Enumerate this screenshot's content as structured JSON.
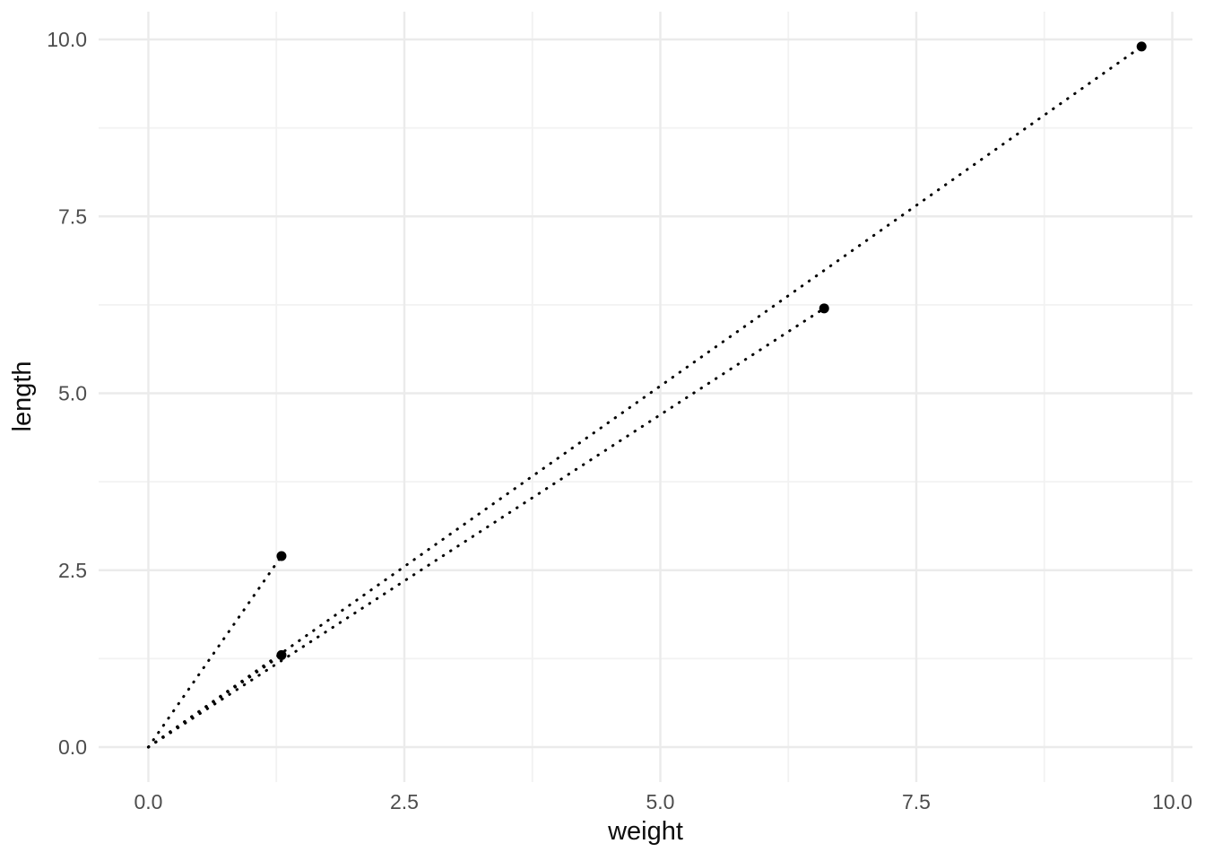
{
  "chart_data": {
    "type": "scatter",
    "title": "",
    "xlabel": "weight",
    "ylabel": "length",
    "xlim": [
      -0.49,
      10.19
    ],
    "ylim": [
      -0.49,
      10.39
    ],
    "x_major_ticks": [
      0.0,
      2.5,
      5.0,
      7.5,
      10.0
    ],
    "x_tick_labels": [
      "0.0",
      "2.5",
      "5.0",
      "7.5",
      "10.0"
    ],
    "y_major_ticks": [
      0.0,
      2.5,
      5.0,
      7.5,
      10.0
    ],
    "y_tick_labels": [
      "0.0",
      "2.5",
      "5.0",
      "7.5",
      "10.0"
    ],
    "x_minor_ticks": [
      1.25,
      3.75,
      6.25,
      8.75
    ],
    "y_minor_ticks": [
      1.25,
      3.75,
      6.25,
      8.75
    ],
    "grid": "major-and-minor",
    "legend": false,
    "series": [
      {
        "name": "points",
        "marker": "filled-circle",
        "points": [
          {
            "weight": 1.3,
            "length": 2.7
          },
          {
            "weight": 1.3,
            "length": 1.3
          },
          {
            "weight": 6.6,
            "length": 6.2
          },
          {
            "weight": 9.7,
            "length": 9.9
          }
        ]
      }
    ],
    "segments": [
      {
        "x1": 0,
        "y1": 0,
        "x2": 1.3,
        "y2": 2.7
      },
      {
        "x1": 0,
        "y1": 0,
        "x2": 1.3,
        "y2": 1.3
      },
      {
        "x1": 0,
        "y1": 0,
        "x2": 6.6,
        "y2": 6.2
      },
      {
        "x1": 0,
        "y1": 0,
        "x2": 9.7,
        "y2": 9.9
      }
    ],
    "segment_style": "dotted",
    "colors": {
      "background": "#ffffff",
      "point": "#000000",
      "segment": "#000000",
      "grid_major": "#ebebeb",
      "grid_minor": "#f2f2f2",
      "tick_label": "#4d4d4d",
      "axis_title": "#0d0d0d"
    }
  }
}
